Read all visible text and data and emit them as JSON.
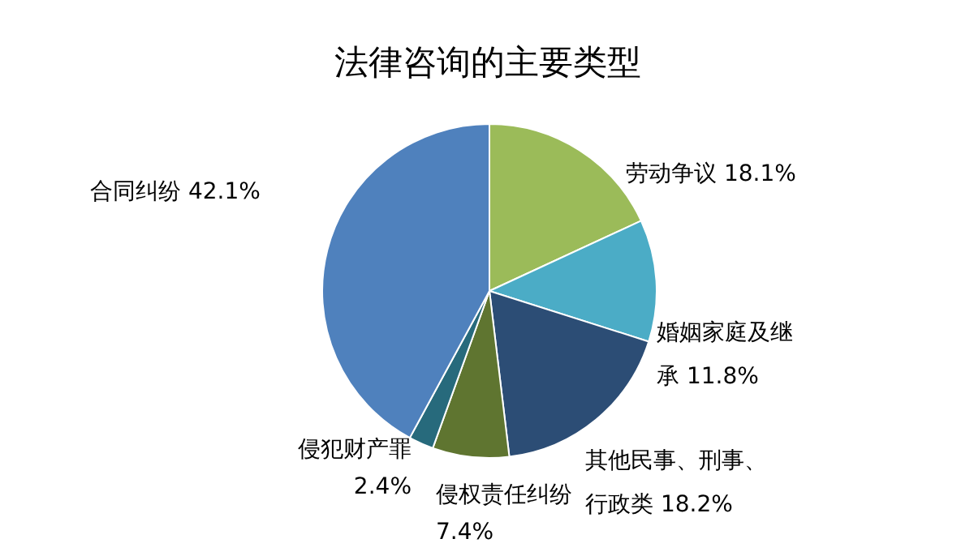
{
  "chart_data": {
    "type": "pie",
    "title": "法律咨询的主要类型",
    "categories": [
      "劳动争议",
      "婚姻家庭及继承",
      "其他民事、刑事、行政类",
      "侵权责任纠纷",
      "侵犯财产罪",
      "合同纠纷"
    ],
    "values": [
      18.1,
      11.8,
      18.2,
      7.4,
      2.4,
      42.1
    ],
    "value_labels": [
      "18.1%",
      "11.8%",
      "18.2%",
      "7.4%",
      "2.4%",
      "42.1%"
    ],
    "colors": [
      "#9bbb59",
      "#4bacc6",
      "#2c4d75",
      "#5f7530",
      "#276a7c",
      "#4f81bd"
    ]
  }
}
